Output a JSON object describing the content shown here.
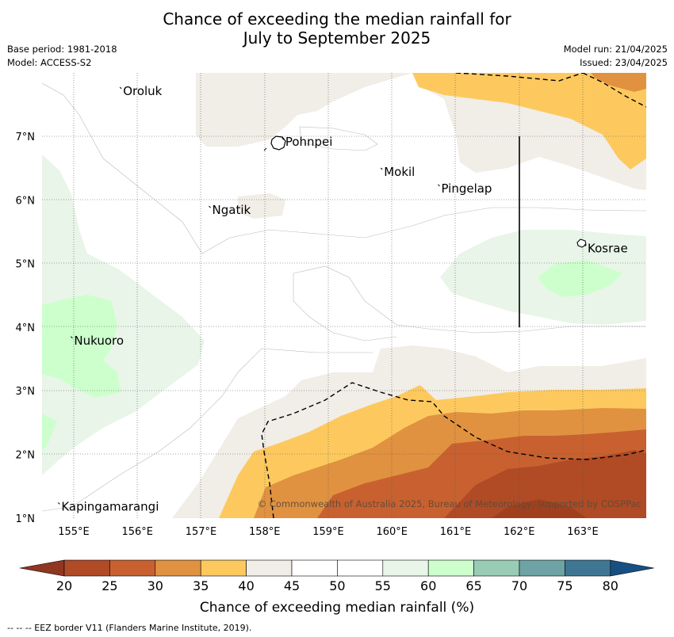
{
  "title_line1": "Chance of exceeding the median rainfall for",
  "title_line2": "July to September 2025",
  "meta": {
    "base_period": "Base period: 1981-2018",
    "model": "Model: ACCESS-S2",
    "model_run": "Model run: 21/04/2025",
    "issued": "Issued: 23/04/2025"
  },
  "map": {
    "lon_ticks": [
      "155°E",
      "156°E",
      "157°E",
      "158°E",
      "159°E",
      "160°E",
      "161°E",
      "162°E",
      "163°E"
    ],
    "lat_ticks": [
      "7°N",
      "6°N",
      "5°N",
      "4°N",
      "3°N",
      "2°N",
      "1°N"
    ],
    "places": [
      {
        "name": "Oroluk",
        "lon": 155.75,
        "lat": 7.65
      },
      {
        "name": "Pohnpei",
        "lon": 158.3,
        "lat": 6.85
      },
      {
        "name": "Mokil",
        "lon": 159.85,
        "lat": 6.38
      },
      {
        "name": "Pingelap",
        "lon": 160.75,
        "lat": 6.12
      },
      {
        "name": "Ngatik",
        "lon": 157.15,
        "lat": 5.78
      },
      {
        "name": "Kosrae",
        "lon": 163.05,
        "lat": 5.18
      },
      {
        "name": "Nukuoro",
        "lon": 154.98,
        "lat": 3.73
      },
      {
        "name": "Kapingamarangi",
        "lon": 154.78,
        "lat": 1.12
      }
    ],
    "copyright": "© Commonwealth of Australia 2025, Bureau of Meteorology, supported by COSPPac"
  },
  "colorbar": {
    "label": "Chance of exceeding median rainfall (%)",
    "ticks": [
      "20",
      "25",
      "30",
      "35",
      "40",
      "45",
      "50",
      "55",
      "60",
      "65",
      "70",
      "75",
      "80"
    ],
    "colors": [
      "#b04b25",
      "#c8612f",
      "#e09240",
      "#fdc95f",
      "#f1ede7",
      "#ffffff",
      "#ffffff",
      "#e8f5e8",
      "#ccffcc",
      "#99ccb4",
      "#6da3a4",
      "#3f7694"
    ],
    "low_arrow_color": "#8f3720",
    "high_arrow_color": "#174f83"
  },
  "footnote": "--  --  -- EEZ border V11 (Flanders Marine Institute, 2019)."
}
